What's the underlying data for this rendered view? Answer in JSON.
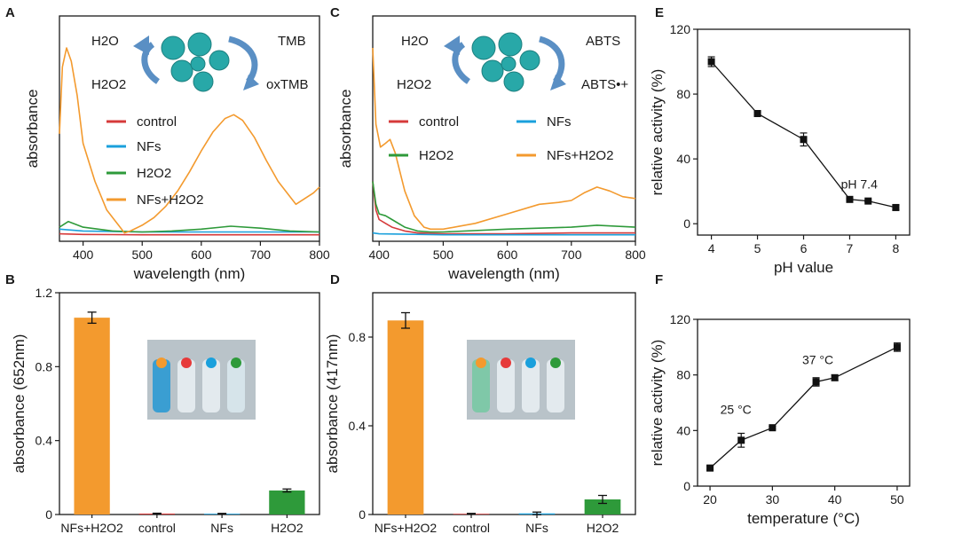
{
  "figure": {
    "panels": [
      "A",
      "B",
      "C",
      "D",
      "E",
      "F"
    ]
  },
  "colors": {
    "control": "#d63a3a",
    "nfs": "#1aa0dc",
    "h2o2": "#2e9a3a",
    "nfs_h2o2": "#f39a2e",
    "arrow": "#5a8fc4",
    "nanoflower": "#28a8a8",
    "axis": "#1a1a1a"
  },
  "scheme_A": {
    "left_top": "H2O",
    "left_bottom": "H2O2",
    "right_top": "TMB",
    "right_bottom": "oxTMB"
  },
  "scheme_C": {
    "left_top": "H2O",
    "left_bottom": "H2O2",
    "right_top": "ABTS",
    "right_bottom": "ABTS•+"
  },
  "chart_data": [
    {
      "panel": "A",
      "type": "line",
      "xlabel": "wavelength (nm)",
      "ylabel": "absorbance",
      "xlim": [
        360,
        800
      ],
      "xticks": [
        400,
        500,
        600,
        700,
        800
      ],
      "ylim": [
        0,
        1
      ],
      "show_yticks": false,
      "legend": [
        "control",
        "NFs",
        "H2O2",
        "NFs+H2O2"
      ],
      "series": [
        {
          "name": "control",
          "color_key": "control",
          "x": [
            360,
            400,
            500,
            600,
            700,
            800
          ],
          "y": [
            0.025,
            0.022,
            0.02,
            0.02,
            0.02,
            0.02
          ]
        },
        {
          "name": "NFs",
          "color_key": "nfs",
          "x": [
            360,
            400,
            500,
            600,
            700,
            800
          ],
          "y": [
            0.05,
            0.04,
            0.035,
            0.035,
            0.035,
            0.035
          ]
        },
        {
          "name": "H2O2",
          "color_key": "h2o2",
          "x": [
            360,
            375,
            400,
            450,
            500,
            550,
            600,
            650,
            700,
            750,
            800
          ],
          "y": [
            0.06,
            0.09,
            0.06,
            0.04,
            0.035,
            0.04,
            0.05,
            0.065,
            0.055,
            0.04,
            0.035
          ]
        },
        {
          "name": "NFs+H2O2",
          "color_key": "nfs_h2o2",
          "x": [
            360,
            365,
            372,
            380,
            390,
            400,
            420,
            440,
            460,
            470,
            480,
            500,
            520,
            540,
            560,
            580,
            600,
            620,
            640,
            655,
            670,
            690,
            710,
            730,
            760,
            790,
            800
          ],
          "y": [
            0.55,
            0.9,
            1.0,
            0.93,
            0.75,
            0.5,
            0.3,
            0.15,
            0.07,
            0.03,
            0.04,
            0.07,
            0.11,
            0.17,
            0.25,
            0.35,
            0.46,
            0.56,
            0.63,
            0.65,
            0.62,
            0.53,
            0.41,
            0.3,
            0.18,
            0.24,
            0.27
          ]
        }
      ]
    },
    {
      "panel": "B",
      "type": "bar",
      "ylabel": "absorbance (652nm)",
      "ylim": [
        0,
        1.2
      ],
      "yticks": [
        0,
        0.4,
        0.8,
        1.2
      ],
      "ytick_labels": [
        "0",
        "0.4",
        "0.8",
        "1.2"
      ],
      "categories": [
        "NFs+H2O2",
        "control",
        "NFs",
        "H2O2"
      ],
      "values": [
        1.065,
        0.005,
        0.004,
        0.13
      ],
      "errors": [
        0.03,
        0.002,
        0.002,
        0.008
      ],
      "color_keys": [
        "nfs_h2o2",
        "control",
        "nfs",
        "h2o2"
      ]
    },
    {
      "panel": "C",
      "type": "line",
      "xlabel": "wavelength (nm)",
      "ylabel": "absorbance",
      "xlim": [
        390,
        800
      ],
      "xticks": [
        400,
        500,
        600,
        700,
        800
      ],
      "ylim": [
        0,
        1
      ],
      "show_yticks": false,
      "legend": [
        "control",
        "NFs",
        "H2O2",
        "NFs+H2O2"
      ],
      "series": [
        {
          "name": "control",
          "color_key": "control",
          "x": [
            390,
            395,
            400,
            410,
            420,
            440,
            460,
            500,
            600,
            700,
            800
          ],
          "y": [
            0.3,
            0.15,
            0.1,
            0.08,
            0.06,
            0.04,
            0.03,
            0.025,
            0.025,
            0.03,
            0.03
          ]
        },
        {
          "name": "NFs",
          "color_key": "nfs",
          "x": [
            390,
            400,
            500,
            600,
            700,
            800
          ],
          "y": [
            0.03,
            0.025,
            0.02,
            0.02,
            0.02,
            0.02
          ]
        },
        {
          "name": "H2O2",
          "color_key": "h2o2",
          "x": [
            390,
            395,
            400,
            410,
            420,
            440,
            460,
            480,
            500,
            600,
            700,
            740,
            800
          ],
          "y": [
            0.3,
            0.18,
            0.13,
            0.12,
            0.1,
            0.06,
            0.04,
            0.035,
            0.035,
            0.05,
            0.06,
            0.07,
            0.06
          ]
        },
        {
          "name": "NFs+H2O2",
          "color_key": "nfs_h2o2",
          "x": [
            390,
            395,
            402,
            410,
            417,
            425,
            440,
            455,
            470,
            480,
            500,
            550,
            600,
            650,
            680,
            700,
            720,
            740,
            760,
            780,
            800
          ],
          "y": [
            1.0,
            0.6,
            0.48,
            0.5,
            0.52,
            0.45,
            0.25,
            0.12,
            0.06,
            0.05,
            0.05,
            0.08,
            0.13,
            0.18,
            0.19,
            0.2,
            0.24,
            0.27,
            0.25,
            0.22,
            0.21
          ]
        }
      ]
    },
    {
      "panel": "D",
      "type": "bar",
      "ylabel": "absorbance (417nm)",
      "ylim": [
        0,
        1.0
      ],
      "yticks": [
        0,
        0.4,
        0.8
      ],
      "ytick_labels": [
        "0",
        "0.4",
        "0.8"
      ],
      "categories": [
        "NFs+H2O2",
        "control",
        "NFs",
        "H2O2"
      ],
      "values": [
        0.875,
        0.003,
        0.005,
        0.068
      ],
      "errors": [
        0.035,
        0.002,
        0.006,
        0.018
      ],
      "color_keys": [
        "nfs_h2o2",
        "control",
        "nfs",
        "h2o2"
      ]
    },
    {
      "panel": "E",
      "type": "line",
      "xlabel": "pH value",
      "ylabel": "relative activity (%)",
      "xlim": [
        3.7,
        8.3
      ],
      "xticks": [
        4,
        5,
        6,
        7,
        8
      ],
      "ylim": [
        -7,
        120
      ],
      "yticks": [
        0,
        40,
        80,
        120
      ],
      "x": [
        4,
        5,
        6,
        7,
        7.4,
        8
      ],
      "y": [
        100,
        68,
        52,
        15,
        14,
        10
      ],
      "errors": [
        3,
        1,
        4,
        0.5,
        0.5,
        1.5
      ],
      "annotations": [
        {
          "text": "pH 7.4",
          "x": 7.4,
          "y": 14
        }
      ]
    },
    {
      "panel": "F",
      "type": "line",
      "xlabel": "temperature (°C)",
      "ylabel": "relative activity (%)",
      "xlim": [
        18,
        52
      ],
      "xticks": [
        20,
        30,
        40,
        50
      ],
      "ylim": [
        0,
        120
      ],
      "yticks": [
        0,
        40,
        80,
        120
      ],
      "x": [
        20,
        25,
        30,
        37,
        40,
        50
      ],
      "y": [
        13,
        33,
        42,
        75,
        78,
        100
      ],
      "errors": [
        1.5,
        5,
        1,
        3,
        2,
        3
      ],
      "annotations": [
        {
          "text": "25 °C",
          "x": 25,
          "y": 33
        },
        {
          "text": "37 °C",
          "x": 37,
          "y": 75
        }
      ]
    }
  ]
}
